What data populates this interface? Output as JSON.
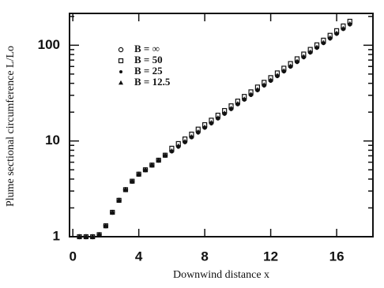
{
  "chart_data": {
    "type": "scatter",
    "xlabel": "Downwind distance x",
    "ylabel": "Plume sectional circumference L/Lo",
    "xlim": [
      -0.2,
      18.2
    ],
    "xticks": [
      0,
      4,
      8,
      12,
      16
    ],
    "ylim": [
      1,
      215
    ],
    "yticks": [
      1,
      10,
      100
    ],
    "ylog": true,
    "legend": "upper left",
    "x": [
      0.4,
      0.8,
      1.2,
      1.6,
      2.0,
      2.4,
      2.8,
      3.2,
      3.6,
      4.0,
      4.4,
      4.8,
      5.2,
      5.6,
      6.0,
      6.4,
      6.8,
      7.2,
      7.6,
      8.0,
      8.4,
      8.8,
      9.2,
      9.6,
      10.0,
      10.4,
      10.8,
      11.2,
      11.6,
      12.0,
      12.4,
      12.8,
      13.2,
      13.6,
      14.0,
      14.4,
      14.8,
      15.2,
      15.6,
      16.0,
      16.4,
      16.8
    ],
    "series": [
      {
        "name": "B = ∞",
        "color": "#111111",
        "marker": "circle",
        "values": [
          1,
          1,
          1,
          1.05,
          1.3,
          1.8,
          2.4,
          3.1,
          3.8,
          4.5,
          5.0,
          5.6,
          6.3,
          7.1,
          7.9,
          8.9,
          9.9,
          11.1,
          12.5,
          14.0,
          15.6,
          17.5,
          19.6,
          22.0,
          24.6,
          27.5,
          30.8,
          34.5,
          38.7,
          43.3,
          48.5,
          54.3,
          60.8,
          68.1,
          76.3,
          85.4,
          95.7,
          107,
          120,
          134,
          150,
          168
        ]
      },
      {
        "name": "B = 50",
        "color": "#111111",
        "marker": "square",
        "values": [
          1,
          1,
          1,
          1.05,
          1.3,
          1.8,
          2.4,
          3.1,
          3.8,
          4.5,
          5.0,
          5.6,
          6.3,
          7.1,
          8.4,
          9.4,
          10.5,
          11.8,
          13.3,
          14.8,
          16.5,
          18.6,
          20.8,
          23.3,
          26.1,
          29.2,
          32.6,
          36.6,
          41.0,
          45.9,
          51.4,
          57.6,
          64.4,
          72.2,
          80.9,
          90.5,
          101,
          113,
          127,
          142,
          159,
          178
        ]
      },
      {
        "name": "B = 25",
        "color": "#111111",
        "marker": "dot",
        "values": [
          1,
          1,
          1,
          1.05,
          1.3,
          1.8,
          2.4,
          3.1,
          3.8,
          4.5,
          5.0,
          5.6,
          6.3,
          7.1,
          7.7,
          8.6,
          9.6,
          10.8,
          12.1,
          13.6,
          15.1,
          17.0,
          19.0,
          21.3,
          23.9,
          26.7,
          29.9,
          33.5,
          37.5,
          42.0,
          47.0,
          52.7,
          59.0,
          66.0,
          74.0,
          82.8,
          92.8,
          104,
          116,
          130,
          146,
          163
        ]
      },
      {
        "name": "B = 12.5",
        "color": "#111111",
        "marker": "triangle",
        "values": [
          1,
          1,
          1,
          1.05,
          1.3,
          1.8,
          2.4,
          3.1,
          3.8,
          4.5,
          5.0,
          5.6,
          6.3,
          7.1,
          7.9,
          8.9,
          9.9,
          11.1,
          12.5,
          14.0,
          15.6,
          17.5,
          19.6,
          22.0,
          24.6,
          27.5,
          30.8,
          34.5,
          38.7,
          43.3,
          48.5,
          54.3,
          60.8,
          68.1,
          76.3,
          85.4,
          95.7,
          107,
          120,
          134,
          150,
          168
        ]
      }
    ]
  }
}
